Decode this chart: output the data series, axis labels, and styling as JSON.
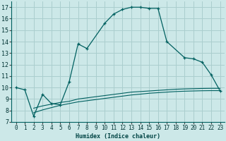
{
  "xlabel": "Humidex (Indice chaleur)",
  "bg_color": "#cce8e8",
  "grid_color": "#aacece",
  "line_color": "#006060",
  "xlim": [
    -0.5,
    23.5
  ],
  "ylim": [
    7,
    17.5
  ],
  "xticks": [
    0,
    1,
    2,
    3,
    4,
    5,
    6,
    7,
    8,
    9,
    10,
    11,
    12,
    13,
    14,
    15,
    16,
    17,
    18,
    19,
    20,
    21,
    22,
    23
  ],
  "yticks": [
    7,
    8,
    9,
    10,
    11,
    12,
    13,
    14,
    15,
    16,
    17
  ],
  "curve1_x": [
    0,
    1,
    2,
    3,
    4,
    5,
    6,
    7,
    8,
    10,
    11,
    12,
    13,
    14,
    15,
    16,
    17,
    19,
    20,
    21,
    22,
    23
  ],
  "curve1_y": [
    10.0,
    9.8,
    7.5,
    9.4,
    8.6,
    8.5,
    10.5,
    13.8,
    13.4,
    15.6,
    16.4,
    16.8,
    17.0,
    17.0,
    16.9,
    16.9,
    14.0,
    12.6,
    12.5,
    12.2,
    11.1,
    9.7
  ],
  "curve2_x": [
    2,
    3,
    4,
    5,
    6,
    7,
    8,
    9,
    10,
    11,
    12,
    13,
    14,
    15,
    16,
    17,
    18,
    19,
    20,
    21,
    22,
    23
  ],
  "curve2_y": [
    8.2,
    8.4,
    8.55,
    8.7,
    8.8,
    9.0,
    9.1,
    9.2,
    9.3,
    9.4,
    9.5,
    9.6,
    9.65,
    9.7,
    9.75,
    9.8,
    9.85,
    9.88,
    9.9,
    9.92,
    9.93,
    9.93
  ],
  "curve3_x": [
    2,
    3,
    4,
    5,
    6,
    7,
    8,
    9,
    10,
    11,
    12,
    13,
    14,
    15,
    16,
    17,
    18,
    19,
    20,
    21,
    22,
    23
  ],
  "curve3_y": [
    7.8,
    8.05,
    8.25,
    8.45,
    8.6,
    8.75,
    8.85,
    8.95,
    9.05,
    9.15,
    9.25,
    9.35,
    9.42,
    9.5,
    9.55,
    9.6,
    9.65,
    9.68,
    9.7,
    9.72,
    9.73,
    9.73
  ]
}
